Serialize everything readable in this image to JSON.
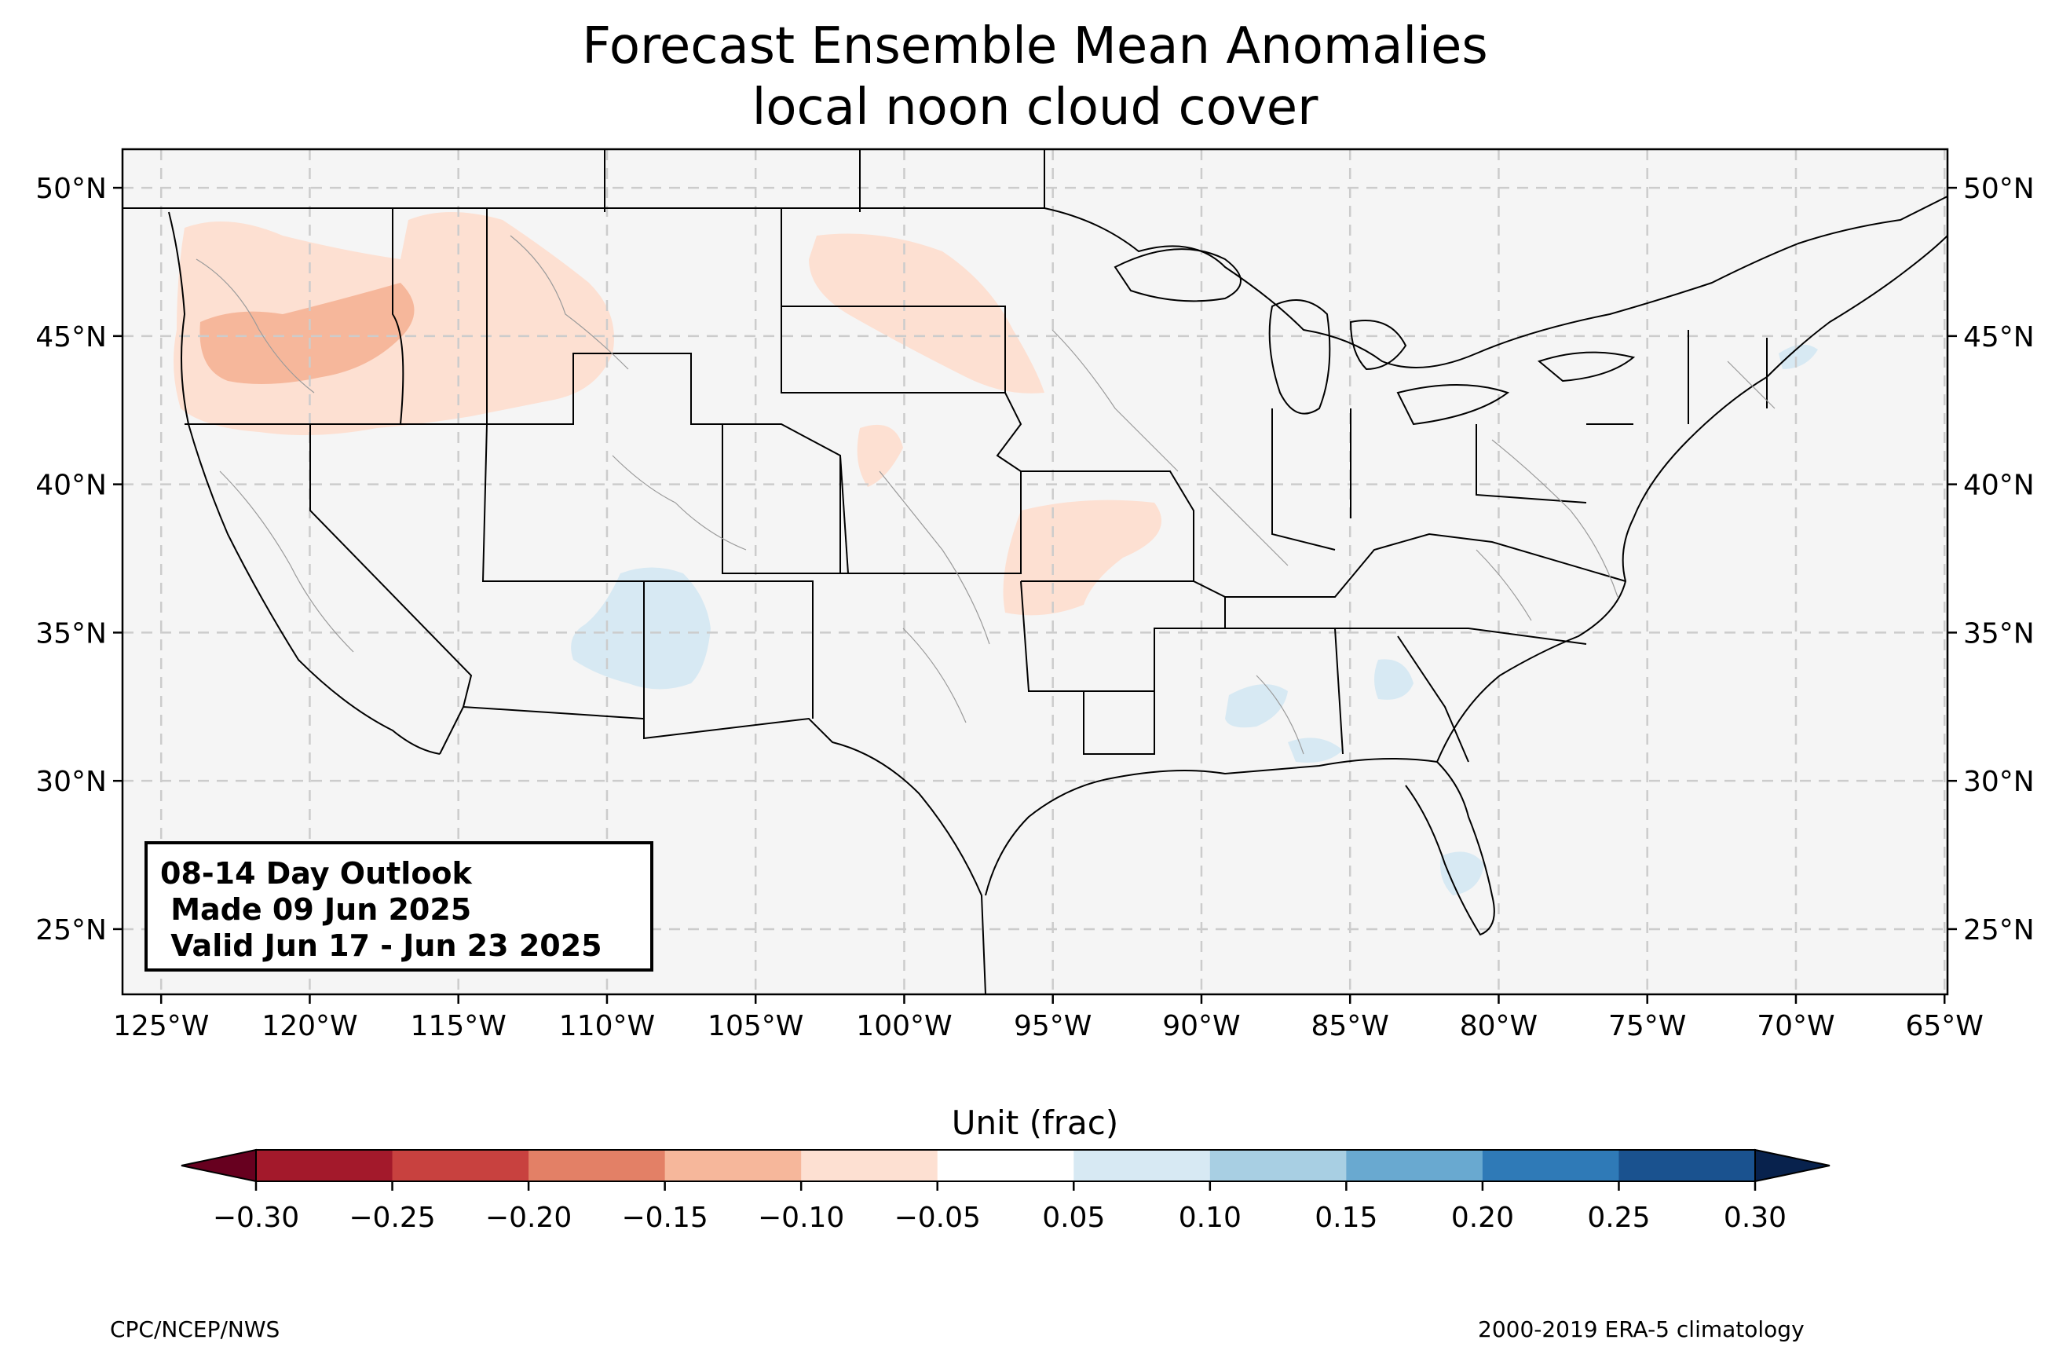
{
  "title": {
    "line1": "Forecast Ensemble Mean Anomalies",
    "line2": "local noon cloud cover"
  },
  "outlook": {
    "line1": "08-14 Day Outlook",
    "line2": " Made 09 Jun 2025",
    "line3": " Valid Jun 17 - Jun 23 2025"
  },
  "chart_data": {
    "type": "map",
    "lon_range": [
      -126.3,
      -64.9
    ],
    "lat_range": [
      22.8,
      51.3
    ],
    "x_ticks": [
      "125°W",
      "120°W",
      "115°W",
      "110°W",
      "105°W",
      "100°W",
      "95°W",
      "90°W",
      "85°W",
      "80°W",
      "75°W",
      "70°W",
      "65°W"
    ],
    "y_ticks": [
      "50°N",
      "45°N",
      "40°N",
      "35°N",
      "30°N",
      "25°N"
    ],
    "grid": true,
    "colorbar": {
      "title": "Unit (frac)",
      "ticks": [
        "−0.30",
        "−0.25",
        "−0.20",
        "−0.15",
        "−0.10",
        "−0.05",
        "0.05",
        "0.10",
        "0.15",
        "0.20",
        "0.25",
        "0.30"
      ],
      "colors": [
        "#a3192b",
        "#c8413f",
        "#e38066",
        "#f6b79b",
        "#fde0d2",
        "#ffffff",
        "#d7e9f3",
        "#a8cfe3",
        "#69a9d0",
        "#2f7ab7",
        "#1a528f"
      ],
      "under_color": "#67001f",
      "over_color": "#08224d"
    }
  },
  "footer": {
    "left": "CPC/NCEP/NWS",
    "right": "2000-2019 ERA-5 climatology"
  }
}
